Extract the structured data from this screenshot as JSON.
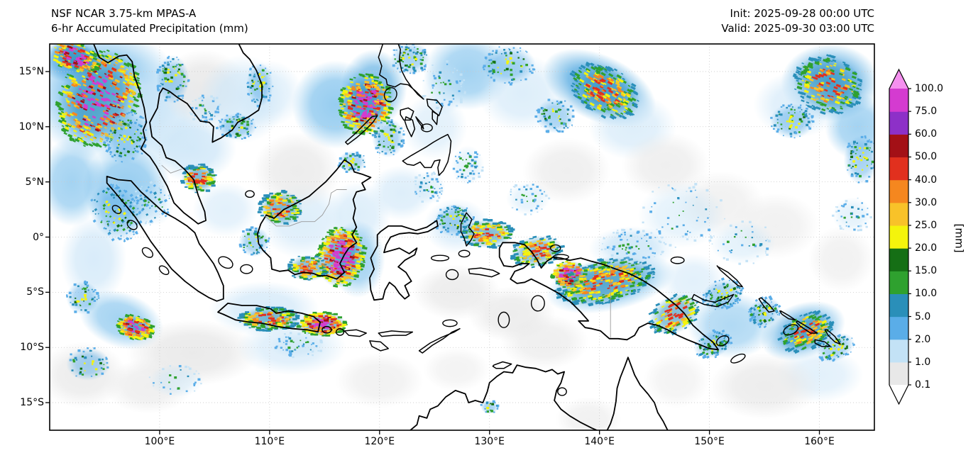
{
  "header": {
    "title_line1": "NSF NCAR 3.75-km MPAS-A",
    "title_line2": "6-hr Accumulated Precipitation (mm)",
    "init_label": "Init: 2025-09-28 00:00 UTC",
    "valid_label": "Valid: 2025-09-30 03:00 UTC"
  },
  "chart_data": {
    "type": "heatmap",
    "title": "NSF NCAR 3.75-km MPAS-A — 6-hr Accumulated Precipitation (mm)",
    "init_time": "2025-09-28 00:00 UTC",
    "valid_time": "2025-09-30 03:00 UTC",
    "units": "mm",
    "projection": "equirectangular",
    "lon_range": [
      90.0,
      165.0
    ],
    "lat_range": [
      -17.5,
      17.5
    ],
    "x_tick_lons": [
      100,
      110,
      120,
      130,
      140,
      150,
      160
    ],
    "x_tick_labels": [
      "100°E",
      "110°E",
      "120°E",
      "130°E",
      "140°E",
      "150°E",
      "160°E"
    ],
    "y_tick_lats": [
      15,
      10,
      5,
      0,
      -5,
      -10,
      -15
    ],
    "y_tick_labels": [
      "15°N",
      "10°N",
      "5°N",
      "0°",
      "5°S",
      "10°S",
      "15°S"
    ],
    "grid": "dotted",
    "colorbar": {
      "unit": "[mm]",
      "orientation": "vertical-right",
      "levels": [
        0.1,
        1.0,
        2.0,
        5.0,
        10.0,
        15.0,
        20.0,
        25.0,
        30.0,
        40.0,
        50.0,
        60.0,
        75.0,
        100.0
      ],
      "tick_labels_top_to_bottom": [
        "100.0",
        "75.0",
        "60.0",
        "50.0",
        "40.0",
        "30.0",
        "25.0",
        "20.0",
        "15.0",
        "10.0",
        "5.0",
        "2.0",
        "1.0",
        "0.1"
      ],
      "segment_colors": [
        "#e8e8e8",
        "#c3e2f6",
        "#5aade8",
        "#2a8fb9",
        "#2fa12f",
        "#156f15",
        "#f4f40c",
        "#f8c229",
        "#f5871f",
        "#e1301e",
        "#a31016",
        "#8d30c8",
        "#d43bd0"
      ],
      "under_color": "#ffffff",
      "over_color": "#f590ef"
    },
    "cell_fields": [
      "lon",
      "lat",
      "rlon_deg",
      "rlat_deg",
      "rot_deg",
      "n_speckles",
      "intensity"
    ],
    "precip_cells": [
      [
        94.5,
        12.5,
        3.6,
        4.6,
        25,
        430,
        "extreme"
      ],
      [
        92.3,
        16.3,
        2.3,
        1.4,
        20,
        130,
        "extreme"
      ],
      [
        97.0,
        9.0,
        2.0,
        2.4,
        20,
        100,
        "moderate"
      ],
      [
        101.2,
        14.3,
        1.5,
        2.2,
        0,
        80,
        "moderate"
      ],
      [
        104.2,
        11.6,
        1.5,
        1.4,
        0,
        50,
        "light"
      ],
      [
        103.6,
        5.3,
        1.6,
        1.3,
        0,
        100,
        "strong"
      ],
      [
        99.4,
        3.0,
        1.8,
        2.0,
        -30,
        70,
        "light"
      ],
      [
        96.0,
        2.2,
        2.2,
        2.8,
        -35,
        110,
        "moderate"
      ],
      [
        107.0,
        10.0,
        1.8,
        1.2,
        0,
        70,
        "moderate"
      ],
      [
        109.1,
        13.8,
        1.2,
        2.0,
        0,
        60,
        "moderate"
      ],
      [
        111.0,
        2.6,
        2.0,
        1.6,
        0,
        130,
        "strong"
      ],
      [
        108.6,
        -0.4,
        1.4,
        1.4,
        0,
        50,
        "moderate"
      ],
      [
        116.5,
        -1.8,
        2.2,
        2.8,
        10,
        340,
        "extreme"
      ],
      [
        113.5,
        -2.8,
        1.8,
        1.2,
        0,
        100,
        "strong"
      ],
      [
        110.0,
        -7.4,
        2.8,
        1.1,
        0,
        180,
        "strong"
      ],
      [
        114.8,
        -7.9,
        2.2,
        1.1,
        0,
        200,
        "extreme"
      ],
      [
        97.8,
        -8.2,
        1.7,
        1.1,
        15,
        140,
        "extreme"
      ],
      [
        93.0,
        -5.5,
        1.5,
        1.5,
        0,
        50,
        "moderate"
      ],
      [
        118.7,
        12.0,
        2.4,
        2.8,
        10,
        300,
        "extreme"
      ],
      [
        120.8,
        9.0,
        1.5,
        1.8,
        0,
        70,
        "moderate"
      ],
      [
        122.8,
        16.2,
        1.8,
        1.5,
        0,
        80,
        "moderate"
      ],
      [
        125.8,
        13.5,
        2.0,
        2.5,
        0,
        60,
        "light"
      ],
      [
        126.8,
        1.5,
        1.8,
        1.5,
        0,
        90,
        "moderate"
      ],
      [
        129.8,
        0.3,
        2.4,
        1.3,
        0,
        140,
        "strong"
      ],
      [
        134.3,
        -1.3,
        2.4,
        1.4,
        -10,
        140,
        "strong"
      ],
      [
        140.5,
        -4.0,
        4.6,
        2.0,
        -12,
        380,
        "strong"
      ],
      [
        137.3,
        -3.4,
        1.6,
        1.3,
        0,
        110,
        "extreme"
      ],
      [
        146.8,
        -7.0,
        2.4,
        1.7,
        -25,
        130,
        "strong"
      ],
      [
        150.3,
        -9.7,
        1.8,
        1.2,
        -20,
        80,
        "moderate"
      ],
      [
        143.0,
        -0.8,
        3.0,
        1.6,
        0,
        70,
        "light"
      ],
      [
        140.5,
        13.2,
        3.4,
        2.2,
        30,
        260,
        "strong"
      ],
      [
        136.0,
        11.0,
        1.8,
        1.6,
        0,
        70,
        "moderate"
      ],
      [
        131.8,
        15.6,
        2.4,
        1.8,
        0,
        80,
        "moderate"
      ],
      [
        147.5,
        2.0,
        4.0,
        3.0,
        0,
        60,
        "light"
      ],
      [
        153.0,
        -0.5,
        3.0,
        2.0,
        0,
        40,
        "light"
      ],
      [
        151.2,
        -5.2,
        2.0,
        1.4,
        -20,
        100,
        "moderate"
      ],
      [
        155.0,
        -6.8,
        1.6,
        1.3,
        -30,
        80,
        "moderate"
      ],
      [
        158.8,
        -8.6,
        2.6,
        1.6,
        -25,
        150,
        "strong"
      ],
      [
        161.5,
        -10.0,
        1.8,
        1.2,
        -25,
        70,
        "moderate"
      ],
      [
        160.8,
        13.8,
        3.2,
        2.6,
        20,
        240,
        "strong"
      ],
      [
        157.5,
        10.5,
        2.0,
        1.6,
        0,
        80,
        "moderate"
      ],
      [
        163.8,
        7.0,
        1.6,
        2.2,
        0,
        70,
        "moderate"
      ],
      [
        163.0,
        2.0,
        1.8,
        1.6,
        0,
        40,
        "light"
      ],
      [
        130.0,
        -15.4,
        0.8,
        0.6,
        0,
        20,
        "moderate"
      ],
      [
        101.5,
        -13.0,
        2.5,
        1.5,
        0,
        30,
        "light"
      ],
      [
        93.5,
        -11.5,
        2.0,
        1.5,
        0,
        40,
        "moderate"
      ],
      [
        124.5,
        4.5,
        1.5,
        1.5,
        0,
        50,
        "light"
      ],
      [
        117.5,
        6.8,
        1.3,
        1.0,
        0,
        40,
        "moderate"
      ],
      [
        112.5,
        -9.8,
        2.5,
        1.2,
        0,
        50,
        "light"
      ],
      [
        128.0,
        6.5,
        1.5,
        1.8,
        0,
        50,
        "light"
      ],
      [
        133.5,
        3.5,
        2.0,
        1.5,
        0,
        40,
        "light"
      ]
    ],
    "wash_fields": [
      "lon",
      "lat",
      "rlon_deg",
      "rlat_deg",
      "rot_deg",
      "color",
      "opacity"
    ],
    "precip_washes": [
      [
        95,
        13,
        7,
        6,
        0,
        "#7cc0ec",
        0.9
      ],
      [
        99,
        11,
        6,
        5,
        0,
        "#cfe7f8",
        0.9
      ],
      [
        104,
        13.5,
        4,
        3.5,
        0,
        "#e8e8e8",
        0.9
      ],
      [
        107.5,
        12.5,
        4,
        4,
        0,
        "#cfe7f8",
        0.8
      ],
      [
        103,
        8,
        4,
        3,
        0,
        "#cfe7f8",
        0.9
      ],
      [
        97,
        4.5,
        4,
        4,
        -30,
        "#7cc0ec",
        0.8
      ],
      [
        94,
        -2,
        3,
        4,
        0,
        "#cfe7f8",
        0.8
      ],
      [
        96.5,
        -7.5,
        4,
        2.5,
        20,
        "#7cc0ec",
        0.7
      ],
      [
        103,
        -10.5,
        6,
        3,
        0,
        "#e8e8e8",
        0.9
      ],
      [
        112,
        -10,
        5,
        2.5,
        0,
        "#cfe7f8",
        0.7
      ],
      [
        109.5,
        -6.5,
        5,
        2.5,
        0,
        "#cfe7f8",
        0.8
      ],
      [
        113,
        1.5,
        4,
        3.5,
        0,
        "#cfe7f8",
        0.7
      ],
      [
        116,
        12,
        4,
        4,
        0,
        "#7cc0ec",
        0.8
      ],
      [
        119.5,
        13.5,
        3,
        3.5,
        0,
        "#4da6e0",
        0.7
      ],
      [
        112.5,
        6,
        4,
        3.5,
        0,
        "#e8e8e8",
        0.8
      ],
      [
        118,
        2,
        3,
        3,
        0,
        "#cfe7f8",
        0.7
      ],
      [
        118,
        -2,
        2.5,
        3.5,
        0,
        "#7cc0ec",
        0.7
      ],
      [
        122,
        4,
        3,
        2.5,
        0,
        "#cfe7f8",
        0.7
      ],
      [
        127,
        1,
        3,
        2.5,
        0,
        "#cfe7f8",
        0.7
      ],
      [
        127,
        -5,
        4,
        2.5,
        0,
        "#e8e8e8",
        0.8
      ],
      [
        132,
        -7,
        4,
        2.5,
        0,
        "#e8e8e8",
        0.8
      ],
      [
        135,
        -9.5,
        4,
        2.5,
        0,
        "#e8e8e8",
        0.7
      ],
      [
        128,
        15,
        4,
        3.5,
        0,
        "#7cc0ec",
        0.7
      ],
      [
        125,
        10,
        3,
        3,
        0,
        "#cfe7f8",
        0.6
      ],
      [
        133,
        13,
        4,
        3.5,
        0,
        "#cfe7f8",
        0.7
      ],
      [
        140,
        13.5,
        5.5,
        3,
        25,
        "#4da6e0",
        0.85
      ],
      [
        143,
        10,
        4,
        3,
        0,
        "#cfe7f8",
        0.7
      ],
      [
        137,
        6,
        4,
        3,
        0,
        "#e8e8e8",
        0.7
      ],
      [
        146,
        6.5,
        4,
        3,
        0,
        "#e8e8e8",
        0.7
      ],
      [
        141,
        -4.2,
        6,
        2.5,
        -12,
        "#7cc0ec",
        0.8
      ],
      [
        143,
        -1,
        4,
        2,
        0,
        "#cfe7f8",
        0.7
      ],
      [
        148.5,
        -4,
        3,
        2.5,
        0,
        "#cfe7f8",
        0.6
      ],
      [
        152,
        -8,
        4,
        3,
        0,
        "#7cc0ec",
        0.6
      ],
      [
        158.5,
        -8.5,
        4,
        2.5,
        -20,
        "#4da6e0",
        0.7
      ],
      [
        160,
        -12.5,
        4,
        2.5,
        0,
        "#cfe7f8",
        0.6
      ],
      [
        155,
        -13.5,
        5,
        3,
        0,
        "#e8e8e8",
        0.8
      ],
      [
        161,
        14,
        4.5,
        3.5,
        0,
        "#4da6e0",
        0.8
      ],
      [
        163.5,
        10,
        3,
        3,
        0,
        "#7cc0ec",
        0.7
      ],
      [
        158,
        12,
        4,
        3,
        0,
        "#cfe7f8",
        0.7
      ],
      [
        151,
        3,
        4,
        3,
        0,
        "#e8e8e8",
        0.6
      ],
      [
        156,
        1,
        4,
        3,
        0,
        "#e8e8e8",
        0.6
      ],
      [
        162,
        -2,
        3,
        3,
        0,
        "#e8e8e8",
        0.6
      ],
      [
        93,
        -12.5,
        4,
        3,
        0,
        "#e8e8e8",
        0.8
      ],
      [
        99,
        -13.5,
        4,
        2.5,
        0,
        "#e8e8e8",
        0.7
      ],
      [
        120,
        -13,
        4,
        2.5,
        0,
        "#e8e8e8",
        0.6
      ],
      [
        127,
        -12,
        3,
        2,
        0,
        "#e8e8e8",
        0.5
      ],
      [
        139,
        -16.5,
        3,
        2,
        0,
        "#e8e8e8",
        0.6
      ],
      [
        147,
        -13,
        3,
        2.5,
        0,
        "#e8e8e8",
        0.5
      ],
      [
        92,
        5,
        3,
        4,
        0,
        "#7cc0ec",
        0.7
      ],
      [
        92,
        16,
        3,
        2,
        0,
        "#4da6e0",
        0.8
      ],
      [
        106,
        2.5,
        3,
        2.5,
        0,
        "#cfe7f8",
        0.6
      ],
      [
        110,
        13,
        3,
        3,
        0,
        "#cfe7f8",
        0.6
      ]
    ]
  }
}
